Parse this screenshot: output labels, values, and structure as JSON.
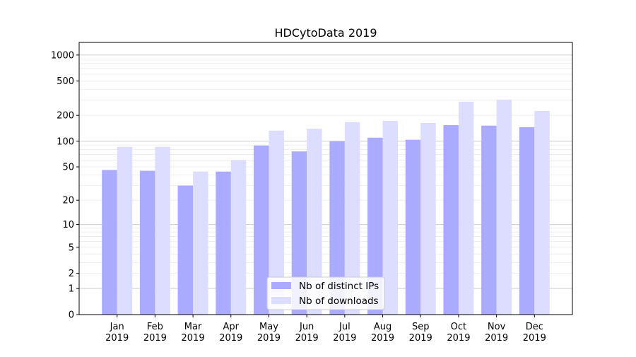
{
  "chart_data": {
    "type": "bar",
    "title": "HDCytoData 2019",
    "xlabel": "",
    "ylabel": "",
    "yscale": "log10(1+y)",
    "ylim": [
      0,
      1400
    ],
    "yticks": [
      0,
      1,
      2,
      5,
      10,
      20,
      50,
      100,
      200,
      500,
      1000
    ],
    "grid": true,
    "legend_position": "bottom-center",
    "categories": [
      "Jan\n2019",
      "Feb\n2019",
      "Mar\n2019",
      "Apr\n2019",
      "May\n2019",
      "Jun\n2019",
      "Jul\n2019",
      "Aug\n2019",
      "Sep\n2019",
      "Oct\n2019",
      "Nov\n2019",
      "Dec\n2019"
    ],
    "series": [
      {
        "name": "Nb of distinct IPs",
        "color": "#aaaaff",
        "values": [
          46,
          45,
          30,
          44,
          89,
          76,
          100,
          110,
          104,
          154,
          152,
          146
        ]
      },
      {
        "name": "Nb of downloads",
        "color": "#ddddff",
        "values": [
          86,
          86,
          44,
          60,
          133,
          140,
          167,
          173,
          163,
          288,
          305,
          225
        ]
      }
    ]
  }
}
